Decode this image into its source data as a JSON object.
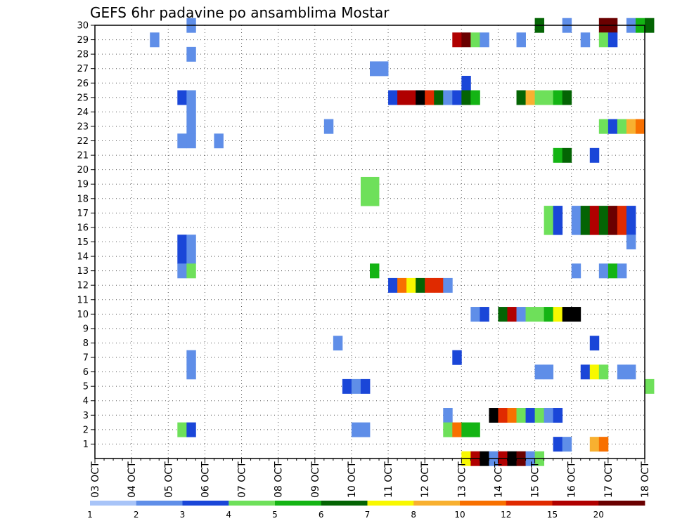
{
  "chart_data": {
    "type": "heatmap",
    "title": "GEFS 6hr padavine po ansamblima Mostar",
    "xlabel": "",
    "ylabel": "",
    "x_ticks": [
      "03 OCT",
      "04 OCT",
      "05 OCT",
      "06 OCT",
      "07 OCT",
      "08 OCT",
      "09 OCT",
      "10 OCT",
      "11 OCT",
      "12 OCT",
      "13 OCT",
      "14 OCT",
      "15 OCT",
      "16 OCT",
      "17 OCT",
      "18 OCT"
    ],
    "y_ticks": [
      "1",
      "2",
      "3",
      "4",
      "5",
      "6",
      "7",
      "8",
      "9",
      "10",
      "11",
      "12",
      "13",
      "14",
      "15",
      "16",
      "17",
      "18",
      "19",
      "20",
      "21",
      "22",
      "23",
      "24",
      "25",
      "26",
      "27",
      "28",
      "29",
      "30"
    ],
    "ylim": [
      0,
      30
    ],
    "x_step_hours": 6,
    "grid": true,
    "colorbar": {
      "labels": [
        "1",
        "2",
        "3",
        "4",
        "5",
        "6",
        "7",
        "8",
        "10",
        "12",
        "15",
        "20"
      ],
      "colors": [
        "#a8c4f8",
        "#5f8ee8",
        "#1a46d8",
        "#6ee05a",
        "#14b414",
        "#046404",
        "#f8f800",
        "#f8b030",
        "#f87000",
        "#e02a00",
        "#b00000",
        "#6a0000"
      ]
    },
    "cells": [
      [
        30,
        10,
        1
      ],
      [
        30,
        48,
        5
      ],
      [
        30,
        51,
        1
      ],
      [
        30,
        55,
        11
      ],
      [
        30,
        56,
        11
      ],
      [
        30,
        58,
        1
      ],
      [
        30,
        59,
        4
      ],
      [
        30,
        60,
        5
      ],
      [
        29,
        6,
        1
      ],
      [
        29,
        39,
        10
      ],
      [
        29,
        40,
        11
      ],
      [
        29,
        41,
        3
      ],
      [
        29,
        42,
        1
      ],
      [
        29,
        46,
        1
      ],
      [
        29,
        53,
        1
      ],
      [
        29,
        55,
        3
      ],
      [
        29,
        56,
        2
      ],
      [
        28,
        10,
        1
      ],
      [
        27,
        30,
        1
      ],
      [
        27,
        31,
        1
      ],
      [
        26,
        40,
        2
      ],
      [
        25,
        9,
        2
      ],
      [
        25,
        10,
        1
      ],
      [
        25,
        32,
        2
      ],
      [
        25,
        33,
        10
      ],
      [
        25,
        34,
        10
      ],
      [
        25,
        35,
        12
      ],
      [
        25,
        36,
        9
      ],
      [
        25,
        37,
        5
      ],
      [
        25,
        38,
        1
      ],
      [
        25,
        39,
        2
      ],
      [
        25,
        40,
        5
      ],
      [
        25,
        41,
        4
      ],
      [
        25,
        46,
        5
      ],
      [
        25,
        47,
        7
      ],
      [
        25,
        48,
        3
      ],
      [
        25,
        49,
        3
      ],
      [
        25,
        50,
        4
      ],
      [
        25,
        51,
        5
      ],
      [
        24,
        10,
        1
      ],
      [
        23,
        10,
        1
      ],
      [
        23,
        25,
        1
      ],
      [
        23,
        55,
        3
      ],
      [
        23,
        56,
        2
      ],
      [
        23,
        57,
        3
      ],
      [
        23,
        58,
        7
      ],
      [
        23,
        59,
        8
      ],
      [
        22,
        9,
        1
      ],
      [
        22,
        10,
        1
      ],
      [
        22,
        13,
        1
      ],
      [
        21,
        50,
        4
      ],
      [
        21,
        51,
        5
      ],
      [
        21,
        54,
        2
      ],
      [
        19,
        29,
        3
      ],
      [
        19,
        30,
        3
      ],
      [
        18,
        29,
        3
      ],
      [
        18,
        30,
        3
      ],
      [
        17,
        49,
        3
      ],
      [
        17,
        50,
        2
      ],
      [
        17,
        52,
        1
      ],
      [
        17,
        53,
        5
      ],
      [
        17,
        54,
        10
      ],
      [
        17,
        55,
        5
      ],
      [
        17,
        56,
        11
      ],
      [
        17,
        57,
        9
      ],
      [
        17,
        58,
        2
      ],
      [
        16,
        49,
        3
      ],
      [
        16,
        50,
        2
      ],
      [
        16,
        52,
        1
      ],
      [
        16,
        53,
        5
      ],
      [
        16,
        54,
        10
      ],
      [
        16,
        55,
        5
      ],
      [
        16,
        56,
        11
      ],
      [
        16,
        57,
        9
      ],
      [
        16,
        58,
        2
      ],
      [
        15,
        9,
        2
      ],
      [
        15,
        10,
        1
      ],
      [
        15,
        58,
        1
      ],
      [
        14,
        9,
        2
      ],
      [
        14,
        10,
        1
      ],
      [
        13,
        9,
        1
      ],
      [
        13,
        10,
        3
      ],
      [
        13,
        30,
        4
      ],
      [
        13,
        52,
        1
      ],
      [
        13,
        55,
        1
      ],
      [
        13,
        56,
        4
      ],
      [
        13,
        57,
        1
      ],
      [
        12,
        32,
        2
      ],
      [
        12,
        33,
        8
      ],
      [
        12,
        34,
        6
      ],
      [
        12,
        35,
        5
      ],
      [
        12,
        36,
        9
      ],
      [
        12,
        37,
        9
      ],
      [
        12,
        38,
        1
      ],
      [
        10,
        41,
        1
      ],
      [
        10,
        42,
        2
      ],
      [
        10,
        44,
        5
      ],
      [
        10,
        45,
        10
      ],
      [
        10,
        46,
        1
      ],
      [
        10,
        47,
        3
      ],
      [
        10,
        48,
        3
      ],
      [
        10,
        49,
        4
      ],
      [
        10,
        50,
        6
      ],
      [
        10,
        51,
        12
      ],
      [
        10,
        52,
        12
      ],
      [
        8,
        26,
        1
      ],
      [
        8,
        54,
        2
      ],
      [
        7,
        10,
        1
      ],
      [
        7,
        39,
        2
      ],
      [
        6,
        10,
        1
      ],
      [
        6,
        48,
        1
      ],
      [
        6,
        49,
        1
      ],
      [
        6,
        53,
        2
      ],
      [
        6,
        54,
        6
      ],
      [
        6,
        55,
        3
      ],
      [
        6,
        57,
        1
      ],
      [
        6,
        58,
        1
      ],
      [
        5,
        27,
        2
      ],
      [
        5,
        28,
        1
      ],
      [
        5,
        29,
        2
      ],
      [
        5,
        60,
        3
      ],
      [
        3,
        38,
        1
      ],
      [
        3,
        43,
        12
      ],
      [
        3,
        44,
        9
      ],
      [
        3,
        45,
        8
      ],
      [
        3,
        46,
        3
      ],
      [
        3,
        47,
        2
      ],
      [
        3,
        48,
        3
      ],
      [
        3,
        49,
        1
      ],
      [
        3,
        50,
        2
      ],
      [
        2,
        9,
        3
      ],
      [
        2,
        10,
        2
      ],
      [
        2,
        28,
        1
      ],
      [
        2,
        29,
        1
      ],
      [
        2,
        38,
        3
      ],
      [
        2,
        39,
        8
      ],
      [
        2,
        40,
        4
      ],
      [
        2,
        41,
        4
      ],
      [
        1,
        50,
        2
      ],
      [
        1,
        51,
        1
      ],
      [
        1,
        54,
        7
      ],
      [
        1,
        55,
        8
      ],
      [
        0,
        40,
        6
      ],
      [
        0,
        41,
        10
      ],
      [
        0,
        42,
        12
      ],
      [
        0,
        43,
        1
      ],
      [
        0,
        44,
        10
      ],
      [
        0,
        45,
        12
      ],
      [
        0,
        46,
        11
      ],
      [
        0,
        47,
        1
      ],
      [
        0,
        48,
        3
      ]
    ]
  }
}
